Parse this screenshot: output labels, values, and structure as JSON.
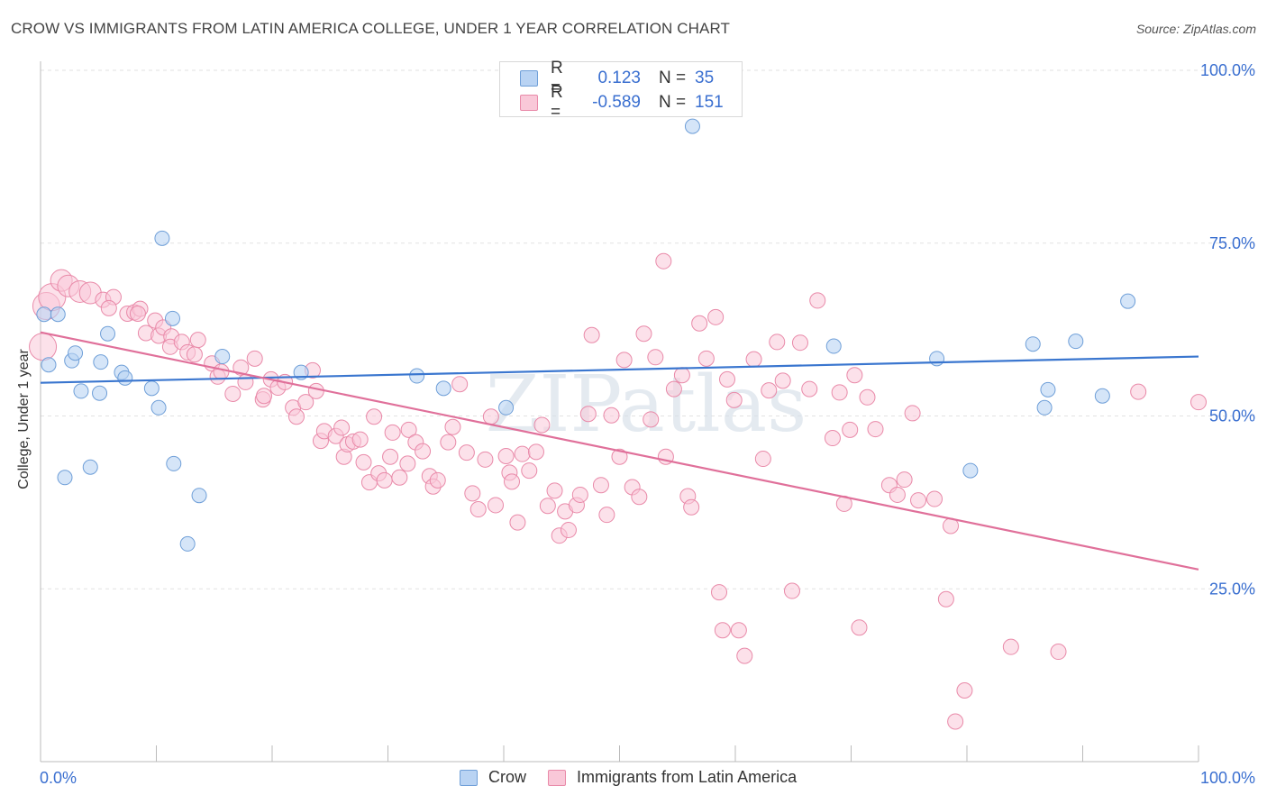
{
  "title": "CROW VS IMMIGRANTS FROM LATIN AMERICA COLLEGE, UNDER 1 YEAR CORRELATION CHART",
  "source": "Source: ZipAtlas.com",
  "watermark": "ZIPatlas",
  "legend_top": {
    "r_label": "R =",
    "n_label": "N =",
    "rows": [
      {
        "r": "0.123",
        "n": "35"
      },
      {
        "r": "-0.589",
        "n": "151"
      }
    ]
  },
  "legend_bottom": [
    "Crow",
    "Immigrants from Latin America"
  ],
  "colors": {
    "crow": "#6f9fd8",
    "crow_fill": "#b9d3f3",
    "crow_line": "#3a76cf",
    "latin": "#e98aa9",
    "latin_fill": "#f9c8d8",
    "latin_line": "#e0709a",
    "tick_label": "#3a6fd0"
  },
  "chart_data": {
    "type": "scatter",
    "title": "CROW VS IMMIGRANTS FROM LATIN AMERICA COLLEGE, UNDER 1 YEAR CORRELATION CHART",
    "xlabel": "",
    "ylabel": "College, Under 1 year",
    "xlim": [
      0,
      100
    ],
    "ylim": [
      0,
      100
    ],
    "x_tick_labels": [
      "0.0%",
      "100.0%"
    ],
    "y_tick_labels": [
      "25.0%",
      "50.0%",
      "75.0%",
      "100.0%"
    ],
    "y_ticks": [
      25,
      50,
      75,
      100
    ],
    "grid": true,
    "legend_position": "top-center",
    "series": [
      {
        "name": "Crow",
        "r": 0.123,
        "n": 35,
        "trend": [
          [
            0,
            54.8
          ],
          [
            100,
            58.6
          ]
        ],
        "points": [
          [
            0.3,
            64.7
          ],
          [
            1.5,
            64.7
          ],
          [
            0.7,
            57.4
          ],
          [
            2.7,
            58.0
          ],
          [
            3.0,
            59.1
          ],
          [
            5.2,
            57.8
          ],
          [
            5.8,
            61.9
          ],
          [
            7.0,
            56.3
          ],
          [
            7.3,
            55.5
          ],
          [
            9.6,
            54.0
          ],
          [
            10.2,
            51.2
          ],
          [
            10.5,
            75.7
          ],
          [
            11.5,
            43.1
          ],
          [
            11.4,
            64.1
          ],
          [
            3.5,
            53.6
          ],
          [
            5.1,
            53.3
          ],
          [
            2.1,
            41.1
          ],
          [
            4.3,
            42.6
          ],
          [
            12.7,
            31.5
          ],
          [
            13.7,
            38.5
          ],
          [
            15.7,
            58.6
          ],
          [
            22.5,
            56.3
          ],
          [
            32.5,
            55.8
          ],
          [
            34.8,
            54.0
          ],
          [
            40.2,
            51.2
          ],
          [
            56.3,
            91.9
          ],
          [
            68.5,
            60.1
          ],
          [
            77.4,
            58.3
          ],
          [
            80.3,
            42.1
          ],
          [
            85.7,
            60.4
          ],
          [
            86.7,
            51.2
          ],
          [
            87.0,
            53.8
          ],
          [
            89.4,
            60.8
          ],
          [
            91.7,
            52.9
          ],
          [
            93.9,
            66.6
          ]
        ]
      },
      {
        "name": "Immigrants from Latin America",
        "r": -0.589,
        "n": 151,
        "trend": [
          [
            0,
            62.1
          ],
          [
            100,
            27.8
          ]
        ],
        "points": [
          [
            0.2,
            60.0
          ],
          [
            0.5,
            65.9
          ],
          [
            1.0,
            67.2
          ],
          [
            1.8,
            69.6
          ],
          [
            2.4,
            68.8
          ],
          [
            3.4,
            68.0
          ],
          [
            4.3,
            67.8
          ],
          [
            5.4,
            66.8
          ],
          [
            6.3,
            67.2
          ],
          [
            5.9,
            65.6
          ],
          [
            7.5,
            64.8
          ],
          [
            8.1,
            65.0
          ],
          [
            8.6,
            65.5
          ],
          [
            8.4,
            64.8
          ],
          [
            9.1,
            62.0
          ],
          [
            9.9,
            63.8
          ],
          [
            10.2,
            61.6
          ],
          [
            10.6,
            62.8
          ],
          [
            11.3,
            61.5
          ],
          [
            11.2,
            60.0
          ],
          [
            12.2,
            60.7
          ],
          [
            12.7,
            59.2
          ],
          [
            13.3,
            58.9
          ],
          [
            13.6,
            61.0
          ],
          [
            14.8,
            57.6
          ],
          [
            15.3,
            55.7
          ],
          [
            15.6,
            56.4
          ],
          [
            16.6,
            53.2
          ],
          [
            17.3,
            57.0
          ],
          [
            17.7,
            54.9
          ],
          [
            18.5,
            58.3
          ],
          [
            19.2,
            52.4
          ],
          [
            19.3,
            52.9
          ],
          [
            19.9,
            55.3
          ],
          [
            20.5,
            54.1
          ],
          [
            21.1,
            54.9
          ],
          [
            21.8,
            51.2
          ],
          [
            22.1,
            49.9
          ],
          [
            22.9,
            52.0
          ],
          [
            23.5,
            56.6
          ],
          [
            23.8,
            53.6
          ],
          [
            24.2,
            46.4
          ],
          [
            24.5,
            47.8
          ],
          [
            25.5,
            47.1
          ],
          [
            26.0,
            48.3
          ],
          [
            26.2,
            44.1
          ],
          [
            26.5,
            45.9
          ],
          [
            27.0,
            46.3
          ],
          [
            27.6,
            46.6
          ],
          [
            27.9,
            43.3
          ],
          [
            28.4,
            40.4
          ],
          [
            28.8,
            49.9
          ],
          [
            29.2,
            41.7
          ],
          [
            29.7,
            40.7
          ],
          [
            30.2,
            44.1
          ],
          [
            30.4,
            47.6
          ],
          [
            31.0,
            41.1
          ],
          [
            31.8,
            48.0
          ],
          [
            31.7,
            43.1
          ],
          [
            32.4,
            46.2
          ],
          [
            33.0,
            44.9
          ],
          [
            33.6,
            41.3
          ],
          [
            33.9,
            39.8
          ],
          [
            34.3,
            40.7
          ],
          [
            35.2,
            46.2
          ],
          [
            35.6,
            48.4
          ],
          [
            36.2,
            54.6
          ],
          [
            36.8,
            44.7
          ],
          [
            37.3,
            38.8
          ],
          [
            37.8,
            36.5
          ],
          [
            38.4,
            43.7
          ],
          [
            38.9,
            49.9
          ],
          [
            39.3,
            37.1
          ],
          [
            40.2,
            44.2
          ],
          [
            40.5,
            41.8
          ],
          [
            40.7,
            40.5
          ],
          [
            41.2,
            34.6
          ],
          [
            41.6,
            44.5
          ],
          [
            42.2,
            42.1
          ],
          [
            42.8,
            44.8
          ],
          [
            43.3,
            48.7
          ],
          [
            43.8,
            37.0
          ],
          [
            44.4,
            39.2
          ],
          [
            44.8,
            32.7
          ],
          [
            45.3,
            36.2
          ],
          [
            45.6,
            33.5
          ],
          [
            46.3,
            37.1
          ],
          [
            46.6,
            38.6
          ],
          [
            47.3,
            50.3
          ],
          [
            47.6,
            61.7
          ],
          [
            48.4,
            40.0
          ],
          [
            48.9,
            35.7
          ],
          [
            49.3,
            50.1
          ],
          [
            50.0,
            44.1
          ],
          [
            50.4,
            58.1
          ],
          [
            51.1,
            39.7
          ],
          [
            51.7,
            38.3
          ],
          [
            52.1,
            61.9
          ],
          [
            52.7,
            49.5
          ],
          [
            53.1,
            58.5
          ],
          [
            54.0,
            44.1
          ],
          [
            53.8,
            72.4
          ],
          [
            54.7,
            53.9
          ],
          [
            55.4,
            55.9
          ],
          [
            55.9,
            38.4
          ],
          [
            56.2,
            36.8
          ],
          [
            56.9,
            63.4
          ],
          [
            57.5,
            58.3
          ],
          [
            58.3,
            64.3
          ],
          [
            58.6,
            24.5
          ],
          [
            58.9,
            19.0
          ],
          [
            59.3,
            55.3
          ],
          [
            59.9,
            52.3
          ],
          [
            60.3,
            19.0
          ],
          [
            60.8,
            15.3
          ],
          [
            61.6,
            58.2
          ],
          [
            62.4,
            43.8
          ],
          [
            62.9,
            53.7
          ],
          [
            63.6,
            60.7
          ],
          [
            64.1,
            55.1
          ],
          [
            64.9,
            24.7
          ],
          [
            65.6,
            60.6
          ],
          [
            66.4,
            53.9
          ],
          [
            67.1,
            66.7
          ],
          [
            68.4,
            46.8
          ],
          [
            69.0,
            53.4
          ],
          [
            69.4,
            37.3
          ],
          [
            69.9,
            48.0
          ],
          [
            70.3,
            55.9
          ],
          [
            70.7,
            19.4
          ],
          [
            71.4,
            52.7
          ],
          [
            72.1,
            48.1
          ],
          [
            73.3,
            40.0
          ],
          [
            74.0,
            38.6
          ],
          [
            74.6,
            40.8
          ],
          [
            75.3,
            50.4
          ],
          [
            75.8,
            37.8
          ],
          [
            77.2,
            38.0
          ],
          [
            78.2,
            23.5
          ],
          [
            78.6,
            34.1
          ],
          [
            79.0,
            5.8
          ],
          [
            79.8,
            10.3
          ],
          [
            83.8,
            16.6
          ],
          [
            87.9,
            15.9
          ],
          [
            94.8,
            53.5
          ],
          [
            100.0,
            52.0
          ]
        ]
      }
    ]
  }
}
